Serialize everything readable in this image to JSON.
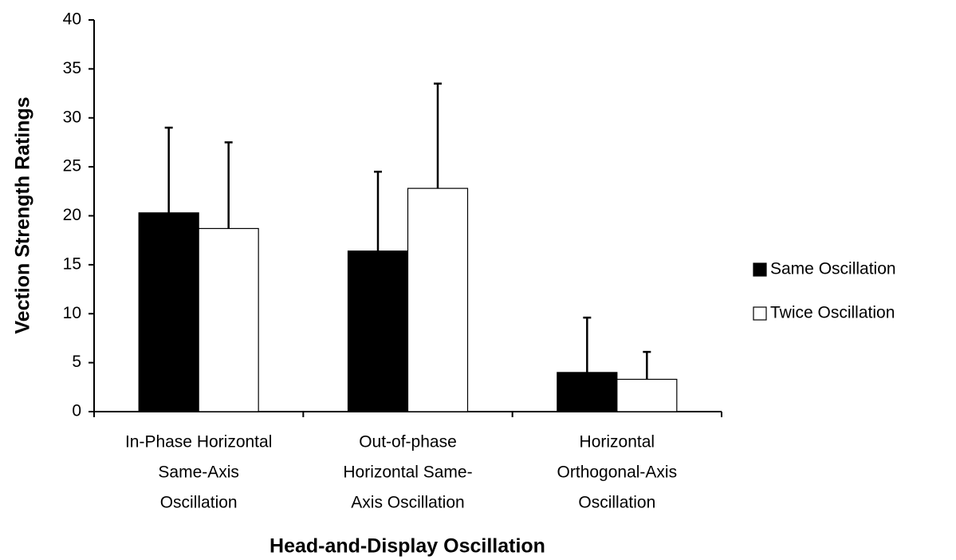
{
  "chart_data": {
    "type": "bar",
    "y_label": "Vection Strength Ratings",
    "x_label": "Head-and-Display Oscillation",
    "categories": [
      [
        "In-Phase Horizontal",
        "Same-Axis",
        "Oscillation"
      ],
      [
        "Out-of-phase",
        "Horizontal Same-",
        "Axis Oscillation"
      ],
      [
        "Horizontal",
        "Orthogonal-Axis",
        "Oscillation"
      ]
    ],
    "series": [
      {
        "name": "Same Oscillation",
        "color": "#000000",
        "values": [
          20.3,
          16.4,
          4.0
        ],
        "errors": [
          8.7,
          8.1,
          5.6
        ]
      },
      {
        "name": "Twice Oscillation",
        "color": "#ffffff",
        "values": [
          18.7,
          22.8,
          3.3
        ],
        "errors": [
          8.8,
          10.7,
          2.8
        ]
      }
    ],
    "ylim": [
      0,
      40
    ],
    "yticks": [
      0,
      5,
      10,
      15,
      20,
      25,
      30,
      35,
      40
    ],
    "grid": false,
    "legend": "right"
  }
}
